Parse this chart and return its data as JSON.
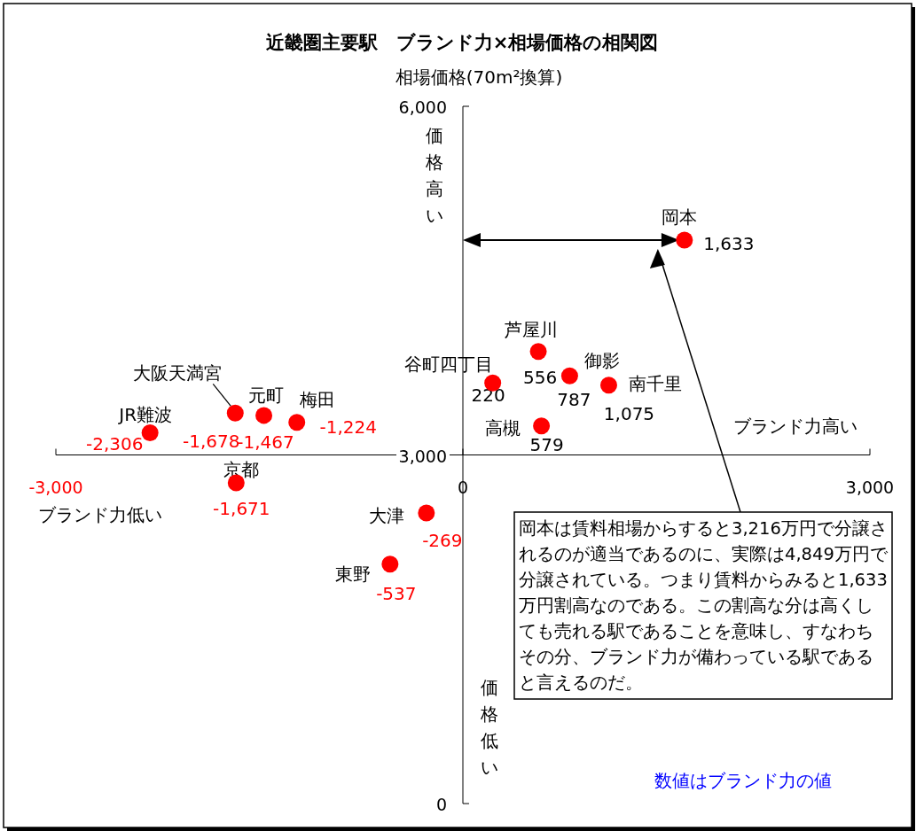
{
  "chart_data": {
    "type": "scatter",
    "title": "近畿圏主要駅　ブランド力×相場価格の相関図",
    "ylabel": "相場価格(70m²換算)",
    "x": [
      1633,
      556,
      787,
      1075,
      220,
      579,
      -1224,
      -1467,
      -1678,
      -2306,
      -1671,
      -269,
      -537
    ],
    "series": [
      {
        "color": "#ff0000",
        "values": [
          4849,
          3890,
          3680,
          3600,
          3620,
          3250,
          3280,
          3340,
          3360,
          3190,
          2760,
          2500,
          2060
        ]
      }
    ],
    "marker": "circle",
    "xlim": [
      -3000,
      3000
    ],
    "ylim": [
      0,
      6000
    ],
    "xticks": [
      {
        "value": -3000,
        "label": "-3,000"
      },
      0,
      {
        "value": 3000,
        "label": "3,000"
      }
    ],
    "yticks": [
      0,
      {
        "value": 3000,
        "label": "3,000"
      },
      {
        "value": 6000,
        "label": "6,000"
      }
    ],
    "annotations": [
      {
        "text": "岡本",
        "x": 1633,
        "y": 4849
      },
      {
        "text": "芦屋川",
        "x": 556,
        "y": 3890
      },
      {
        "text": "御影",
        "x": 787,
        "y": 3680
      },
      {
        "text": "南千里",
        "x": 1075,
        "y": 3600
      },
      {
        "text": "谷町四丁目",
        "x": 220,
        "y": 3620
      },
      {
        "text": "高槻",
        "x": 579,
        "y": 3250
      },
      {
        "text": "梅田",
        "x": -1224,
        "y": 3280
      },
      {
        "text": "元町",
        "x": -1467,
        "y": 3340
      },
      {
        "text": "大阪天満宮",
        "x": -1678,
        "y": 3360
      },
      {
        "text": "JR難波",
        "x": -2306,
        "y": 3190
      },
      {
        "text": "京都",
        "x": -1671,
        "y": 2760
      },
      {
        "text": "大津",
        "x": -269,
        "y": 2500
      },
      {
        "text": "東野",
        "x": -537,
        "y": 2060
      },
      {
        "text": "1,633",
        "x": 1633,
        "y": 4849
      },
      {
        "text": "556",
        "x": 556,
        "y": 3890
      },
      {
        "text": "787",
        "x": 787,
        "y": 3680
      },
      {
        "text": "1,075",
        "x": 1075,
        "y": 3600
      },
      {
        "text": "220",
        "x": 220,
        "y": 3620
      },
      {
        "text": "579",
        "x": 579,
        "y": 3250
      },
      {
        "text": "-1,224",
        "x": -1224,
        "y": 3280
      },
      {
        "text": "-1,467",
        "x": -1467,
        "y": 3340
      },
      {
        "text": "-1,678",
        "x": -1678,
        "y": 3360
      },
      {
        "text": "-2,306",
        "x": -2306,
        "y": 3190
      },
      {
        "text": "-1,671",
        "x": -1671,
        "y": 2760
      },
      {
        "text": "-269",
        "x": -269,
        "y": 2500
      },
      {
        "text": "-537",
        "x": -537,
        "y": 2060
      },
      "価格高い",
      "価格低い",
      "ブランド力高い",
      "ブランド力低い",
      "岡本は賃料相場からすると3,216万円で分譲されるのが適当であるのに、実際は4,849万円で分譲されている。つまり賃料からみると1,633万円割高なのである。この割高な分は高くしても売れる駅であることを意味し、すなわちその分、ブランド力が備わっている駅であると言えるのだ。",
      "数値はブランド力の値"
    ]
  }
}
